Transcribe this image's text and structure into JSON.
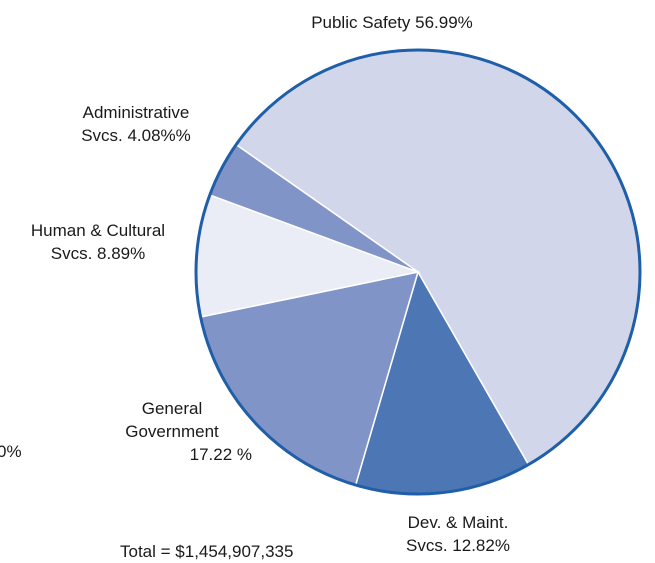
{
  "chart_data": {
    "type": "pie",
    "title": "",
    "slices": [
      {
        "name": "Public Safety",
        "value": 56.99,
        "label_lines": [
          "Public Safety 56.99%"
        ],
        "color": "#d1d6ea"
      },
      {
        "name": "Dev. & Maint. Svcs.",
        "value": 12.82,
        "label_lines": [
          "Dev. & Maint.",
          "Svcs. 12.82%"
        ],
        "color": "#4d76b4"
      },
      {
        "name": "General Government",
        "value": 17.22,
        "label_lines": [
          "General",
          "Government",
          "17.22 %"
        ],
        "color": "#8194c8"
      },
      {
        "name": "Human & Cultural Svcs.",
        "value": 8.89,
        "label_lines": [
          "Human & Cultural",
          "Svcs. 8.89%"
        ],
        "color": "#eaecf6"
      },
      {
        "name": "Administrative Svcs.",
        "value": 4.08,
        "label_lines": [
          "Administrative",
          "Svcs. 4.08%%"
        ],
        "color": "#8194c8"
      }
    ],
    "outline_color": "#1f5ea8",
    "separator_color": "#ffffff",
    "total_label": "Total = $1,454,907,335",
    "edge_fragment": "0%"
  }
}
